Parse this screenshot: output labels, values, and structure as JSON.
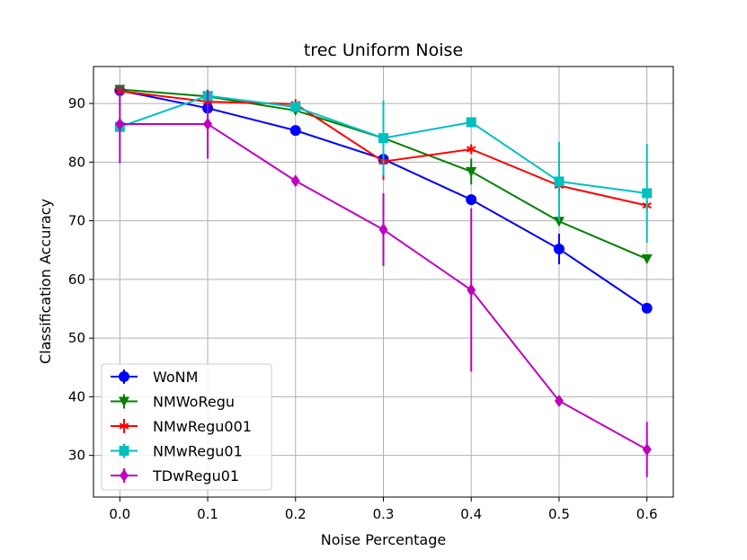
{
  "chart_data": {
    "type": "line",
    "title": "trec Uniform Noise",
    "xlabel": "Noise Percentage",
    "ylabel": "Classification Accuracy",
    "x": [
      0.0,
      0.1,
      0.2,
      0.3,
      0.4,
      0.5,
      0.6
    ],
    "x_tick_labels": [
      "0.0",
      "0.1",
      "0.2",
      "0.3",
      "0.4",
      "0.5",
      "0.6"
    ],
    "y_ticks": [
      30,
      40,
      50,
      60,
      70,
      80,
      90
    ],
    "xlim": [
      -0.03,
      0.63
    ],
    "ylim": [
      22.9,
      96.3
    ],
    "grid": true,
    "legend_position": "lower-left",
    "series": [
      {
        "name": "WoNM",
        "color": "#0000ff",
        "marker": "circle",
        "values": [
          92.2,
          89.2,
          85.4,
          80.5,
          73.6,
          65.2,
          55.1
        ],
        "err_low": [
          91.5,
          88.7,
          85.0,
          79.8,
          73.0,
          62.6,
          54.6
        ],
        "err_high": [
          92.9,
          89.7,
          85.8,
          81.2,
          74.2,
          67.8,
          55.6
        ]
      },
      {
        "name": "NMWoRegu",
        "color": "#008000",
        "marker": "triangle-down",
        "values": [
          92.4,
          91.2,
          88.8,
          84.1,
          78.4,
          69.9,
          63.5
        ],
        "err_low": [
          91.8,
          90.7,
          88.3,
          83.4,
          76.2,
          69.2,
          62.8
        ],
        "err_high": [
          93.0,
          91.7,
          89.3,
          84.8,
          80.6,
          70.6,
          64.2
        ]
      },
      {
        "name": "NMwRegu001",
        "color": "#ff0000",
        "marker": "star",
        "values": [
          92.1,
          90.3,
          89.9,
          80.1,
          82.2,
          76.0,
          72.6
        ],
        "err_low": [
          91.6,
          89.8,
          89.4,
          77.0,
          81.5,
          75.0,
          72.0
        ],
        "err_high": [
          92.6,
          90.8,
          90.4,
          83.2,
          82.9,
          77.0,
          73.2
        ]
      },
      {
        "name": "NMwRegu01",
        "color": "#00bfbf",
        "marker": "square",
        "values": [
          86.0,
          91.3,
          89.4,
          84.1,
          86.8,
          76.7,
          74.7
        ],
        "err_low": [
          85.3,
          90.6,
          88.7,
          77.7,
          86.1,
          70.0,
          66.3
        ],
        "err_high": [
          86.7,
          92.0,
          90.1,
          90.5,
          87.5,
          83.4,
          83.1
        ]
      },
      {
        "name": "TDwRegu01",
        "color": "#bf00bf",
        "marker": "diamond",
        "values": [
          86.5,
          86.5,
          76.8,
          68.5,
          58.2,
          39.3,
          31.0
        ],
        "err_low": [
          79.8,
          80.6,
          76.1,
          62.3,
          44.3,
          38.6,
          26.3
        ],
        "err_high": [
          93.2,
          92.4,
          77.5,
          74.7,
          72.1,
          40.0,
          35.7
        ]
      }
    ]
  }
}
